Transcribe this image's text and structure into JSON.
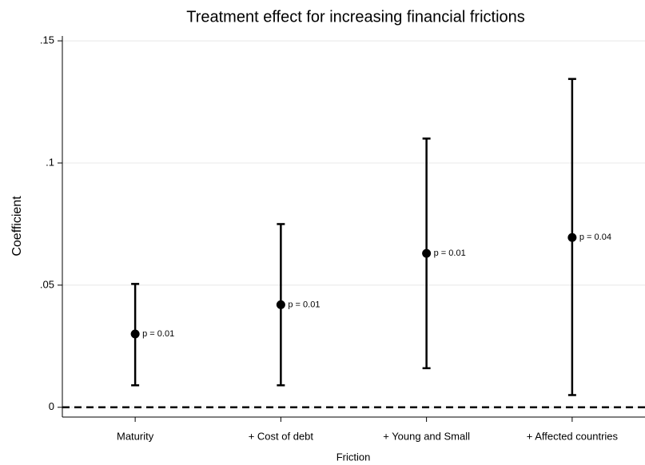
{
  "chart_data": {
    "type": "errorbar",
    "title": "Treatment effect for increasing financial frictions",
    "x_label": "Friction",
    "y_label": "Coefficient",
    "categories": [
      "Maturity",
      "+ Cost of debt",
      "+ Young and Small",
      "+ Affected countries"
    ],
    "values": [
      0.03,
      0.042,
      0.063,
      0.0695
    ],
    "ci_lower": [
      0.009,
      0.009,
      0.016,
      0.005
    ],
    "ci_upper": [
      0.0505,
      0.075,
      0.11,
      0.1344
    ],
    "annotations": [
      "p = 0.01",
      "p = 0.01",
      "p = 0.01",
      "p = 0.04"
    ],
    "color": "#000000",
    "reference_line": 0,
    "ylim": [
      -0.004,
      0.152
    ],
    "yticks": [
      0,
      {
        "value": 0.05,
        "label": ".05"
      },
      {
        "value": 0.1,
        "label": ".1"
      },
      {
        "value": 0.15,
        "label": ".15"
      }
    ],
    "grid": true
  }
}
